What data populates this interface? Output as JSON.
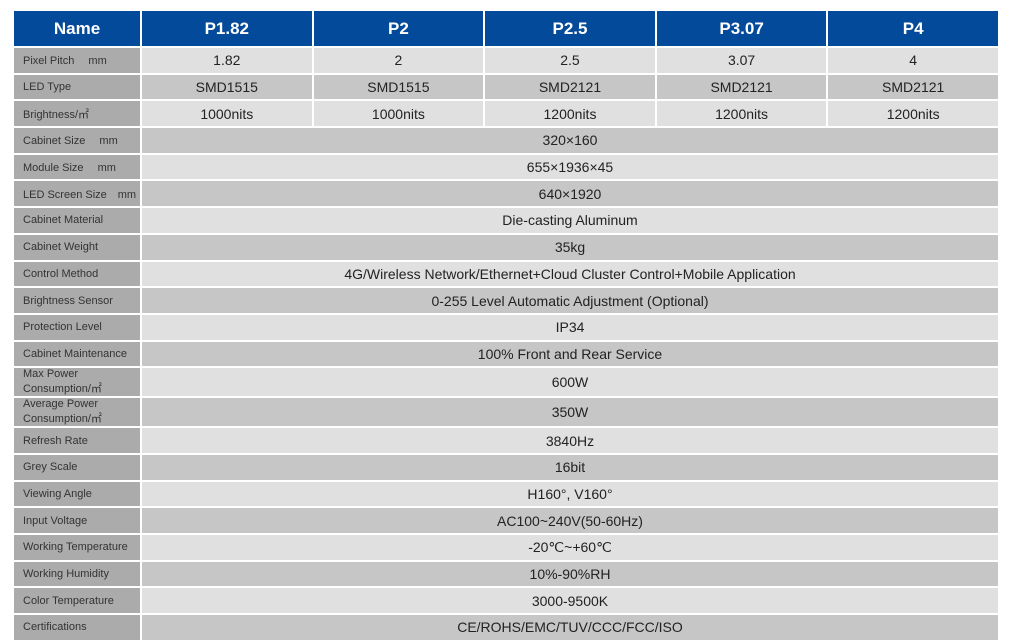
{
  "header": [
    "Name",
    "P1.82",
    "P2",
    "P2.5",
    "P3.07",
    "P4"
  ],
  "rows": [
    {
      "label": "Pixel Pitch　 mm",
      "values": [
        "1.82",
        "2",
        "2.5",
        "3.07",
        "4"
      ]
    },
    {
      "label": "LED Type",
      "values": [
        "SMD1515",
        "SMD1515",
        "SMD2121",
        "SMD2121",
        "SMD2121"
      ]
    },
    {
      "label": "Brightness/㎡",
      "values": [
        "1000nits",
        "1000nits",
        "1200nits",
        "1200nits",
        "1200nits"
      ]
    },
    {
      "label": "Cabinet Size　 mm",
      "values": [
        "320×160"
      ]
    },
    {
      "label": "Module Size　 mm",
      "values": [
        "655×1936×45"
      ]
    },
    {
      "label": "LED Screen Size　mm",
      "values": [
        "640×1920"
      ]
    },
    {
      "label": "Cabinet Material",
      "values": [
        "Die-casting Aluminum"
      ]
    },
    {
      "label": "Cabinet Weight",
      "values": [
        "35kg"
      ]
    },
    {
      "label": "Control Method",
      "values": [
        "4G/Wireless Network/Ethernet+Cloud Cluster Control+Mobile Application"
      ]
    },
    {
      "label": "Brightness Sensor",
      "values": [
        "0-255 Level Automatic Adjustment (Optional)"
      ]
    },
    {
      "label": "Protection Level",
      "values": [
        "IP34"
      ]
    },
    {
      "label": "Cabinet Maintenance",
      "values": [
        "100% Front and Rear Service"
      ]
    },
    {
      "label": "Max Power Consumption/㎡",
      "values": [
        "600W"
      ]
    },
    {
      "label": "Average Power Consumption/㎡",
      "values": [
        "350W"
      ]
    },
    {
      "label": "Refresh Rate",
      "values": [
        "3840Hz"
      ]
    },
    {
      "label": "Grey Scale",
      "values": [
        "16bit"
      ]
    },
    {
      "label": "Viewing Angle",
      "values": [
        "H160°,  V160°"
      ]
    },
    {
      "label": "Input Voltage",
      "values": [
        "AC100~240V(50-60Hz)"
      ]
    },
    {
      "label": "Working Temperature",
      "values": [
        "-20℃~+60℃"
      ]
    },
    {
      "label": "Working Humidity",
      "values": [
        "10%-90%RH"
      ]
    },
    {
      "label": "Color Temperature",
      "values": [
        "3000-9500K"
      ]
    },
    {
      "label": "Certifications",
      "values": [
        "CE/ROHS/EMC/TUV/CCC/FCC/ISO"
      ]
    }
  ],
  "colors": {
    "header": "#044a9b",
    "label_cell": "#acabab",
    "row_light": "#e0e0e0",
    "row_dark": "#c6c6c6"
  }
}
